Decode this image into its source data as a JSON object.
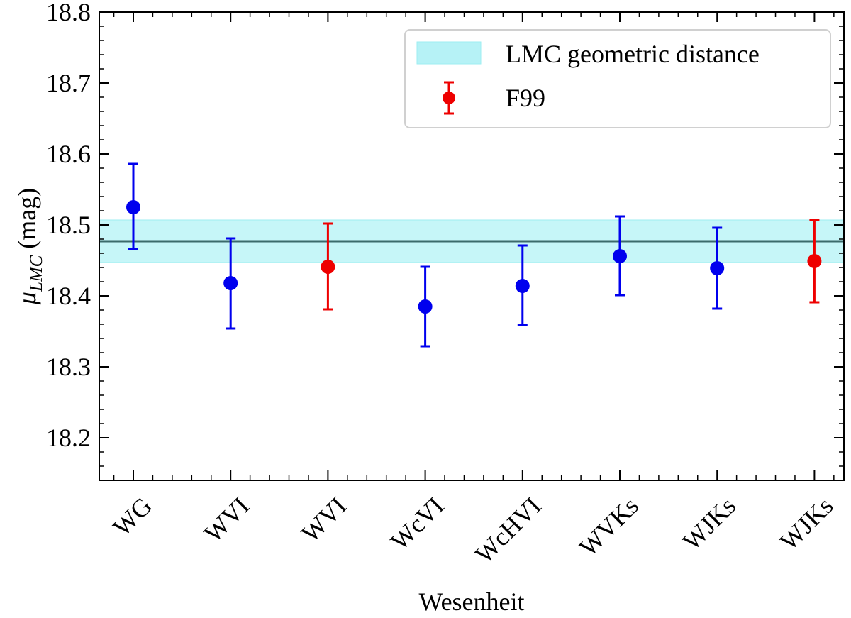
{
  "chart_data": {
    "type": "scatter",
    "title": "",
    "xlabel": "Wesenheit",
    "ylabel_main": "μ",
    "ylabel_sub": "LMC",
    "ylabel_unit": " (mag)",
    "ylim": [
      18.14,
      18.8
    ],
    "yticks": [
      18.2,
      18.3,
      18.4,
      18.5,
      18.6,
      18.7,
      18.8
    ],
    "ytick_labels": [
      "18.2",
      "18.3",
      "18.4",
      "18.5",
      "18.6",
      "18.7",
      "18.8"
    ],
    "categories": [
      "WG",
      "WVI",
      "WVI",
      "WcVI",
      "WcHVI",
      "WVKs",
      "WJKs",
      "WJKs"
    ],
    "points": [
      {
        "label": "WG",
        "y": 18.525,
        "err_lo": 18.466,
        "err_hi": 18.586,
        "group": "this_work"
      },
      {
        "label": "WVI",
        "y": 18.418,
        "err_lo": 18.354,
        "err_hi": 18.481,
        "group": "this_work"
      },
      {
        "label": "WVI",
        "y": 18.441,
        "err_lo": 18.381,
        "err_hi": 18.502,
        "group": "F99"
      },
      {
        "label": "WcVI",
        "y": 18.385,
        "err_lo": 18.329,
        "err_hi": 18.441,
        "group": "this_work"
      },
      {
        "label": "WcHVI",
        "y": 18.414,
        "err_lo": 18.359,
        "err_hi": 18.471,
        "group": "this_work"
      },
      {
        "label": "WVKs",
        "y": 18.456,
        "err_lo": 18.401,
        "err_hi": 18.512,
        "group": "this_work"
      },
      {
        "label": "WJKs",
        "y": 18.439,
        "err_lo": 18.382,
        "err_hi": 18.496,
        "group": "this_work"
      },
      {
        "label": "WJKs",
        "y": 18.449,
        "err_lo": 18.391,
        "err_hi": 18.507,
        "group": "F99"
      }
    ],
    "reference": {
      "label": "LMC geometric distance",
      "value": 18.477,
      "band": [
        18.447,
        18.507
      ]
    },
    "legend": {
      "placement": "top-right",
      "entries": [
        {
          "label": "LMC geometric distance",
          "kind": "band"
        },
        {
          "label": "F99",
          "kind": "errorbar"
        }
      ]
    },
    "colors": {
      "this_work": "#0000ee",
      "F99": "#ee0000",
      "band_fill": "#c6f6f8",
      "band_edge": "#9eeef1",
      "ref_line": "#3c6b6b",
      "legend_band_fill": "#b6f2f6"
    }
  }
}
